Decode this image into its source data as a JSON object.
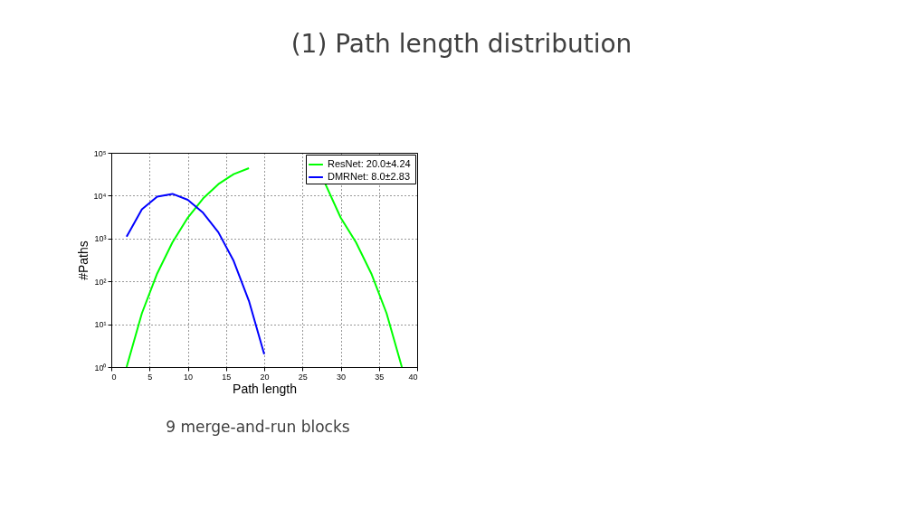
{
  "chart_data": {
    "type": "line",
    "title": "(1) Path length distribution",
    "xlabel": "Path length",
    "ylabel": "#Paths",
    "annotations": [
      "9 merge-and-run blocks"
    ],
    "log": "y",
    "grid": true,
    "legend": "top right",
    "xlim": [
      0,
      40
    ],
    "xticks": [
      0,
      5,
      10,
      15,
      20,
      25,
      30,
      35,
      40
    ],
    "ylim": [
      1,
      100000
    ],
    "yticks": [
      {
        "value": 1,
        "label": "10⁰"
      },
      {
        "value": 10,
        "label": "10¹"
      },
      {
        "value": 100,
        "label": "10²"
      },
      {
        "value": 1000,
        "label": "10³"
      },
      {
        "value": 10000,
        "label": "10⁴"
      },
      {
        "value": 100000,
        "label": "10⁵"
      }
    ],
    "series": [
      {
        "name": "ResNet:  20.0±4.24",
        "color": "#00ff00",
        "x": [
          2,
          4,
          6,
          8,
          10,
          12,
          14,
          16,
          18,
          20,
          22,
          24,
          26,
          28,
          30,
          32,
          34,
          36,
          38
        ],
        "values": [
          1,
          18,
          153,
          816,
          3060,
          8568,
          18564,
          31824,
          43758,
          null,
          null,
          null,
          null,
          18564,
          3060,
          816,
          153,
          18,
          1
        ]
      },
      {
        "name": "DMRNet: 8.0±2.83",
        "color": "#0000ff",
        "x": [
          2,
          4,
          6,
          8,
          10,
          12,
          14,
          16,
          18,
          20
        ],
        "values": [
          1100,
          4800,
          9500,
          11000,
          8000,
          4000,
          1400,
          300,
          35,
          2
        ]
      }
    ]
  }
}
